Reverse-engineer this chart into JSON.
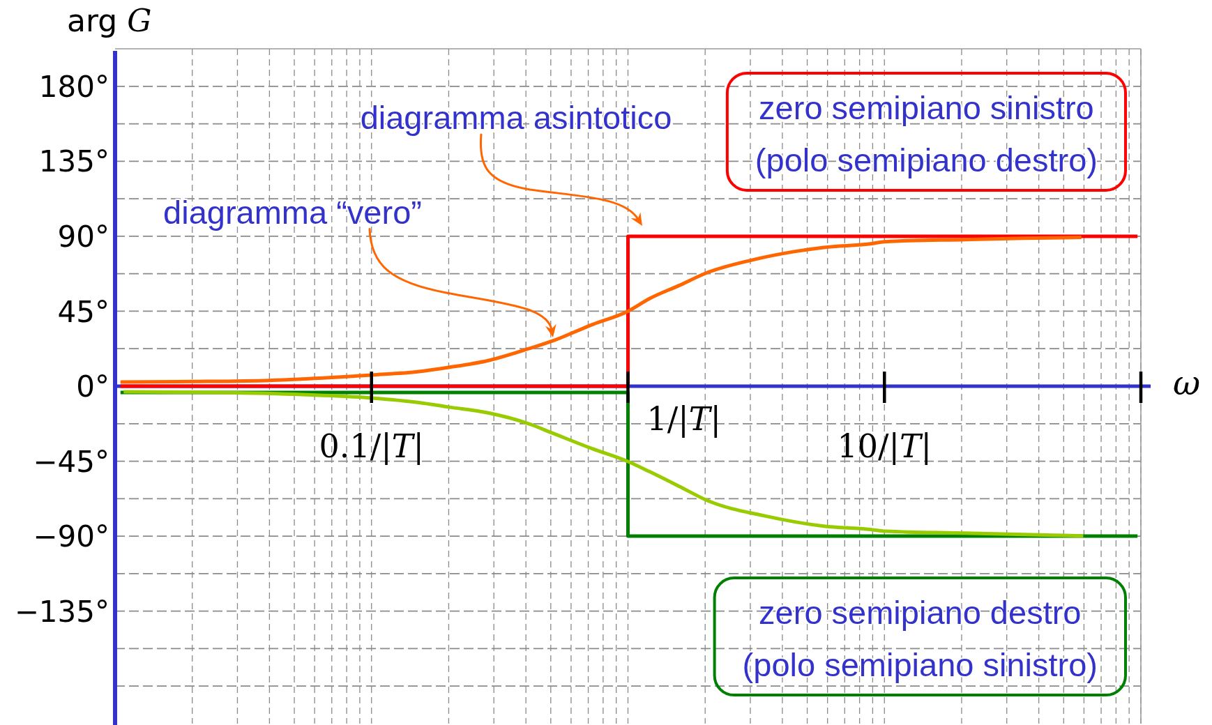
{
  "chart_data": {
    "type": "line",
    "xlabel": "ω",
    "ylabel": "arg G",
    "log": "x",
    "grid": true,
    "xlim": [
      0.01,
      100
    ],
    "ylim": [
      -202.5,
      202.5
    ],
    "xticks": [
      {
        "value": 0.02,
        "label": null
      },
      {
        "value": 0.03,
        "label": null
      },
      {
        "value": 0.04,
        "label": null
      },
      {
        "value": 0.05,
        "label": null
      },
      {
        "value": 0.06,
        "label": null
      },
      {
        "value": 0.07,
        "label": null
      },
      {
        "value": 0.08,
        "label": null
      },
      {
        "value": 0.09,
        "label": null
      },
      {
        "value": 0.1,
        "label": "0.1/|T|"
      },
      {
        "value": 0.2,
        "label": null
      },
      {
        "value": 0.3,
        "label": null
      },
      {
        "value": 0.4,
        "label": null
      },
      {
        "value": 0.5,
        "label": null
      },
      {
        "value": 0.6,
        "label": null
      },
      {
        "value": 0.7,
        "label": null
      },
      {
        "value": 0.8,
        "label": null
      },
      {
        "value": 0.9,
        "label": null
      },
      {
        "value": 1,
        "label": null
      },
      {
        "value": 2,
        "label": null
      },
      {
        "value": 3,
        "label": null
      },
      {
        "value": 4,
        "label": null
      },
      {
        "value": 5,
        "label": null
      },
      {
        "value": 6,
        "label": null
      },
      {
        "value": 7,
        "label": null
      },
      {
        "value": 8,
        "label": null
      },
      {
        "value": 9,
        "label": null
      },
      {
        "value": 10,
        "label": "10/|T|"
      },
      {
        "value": 20,
        "label": null
      },
      {
        "value": 30,
        "label": null
      },
      {
        "value": 40,
        "label": null
      },
      {
        "value": 50,
        "label": null
      },
      {
        "value": 60,
        "label": null
      },
      {
        "value": 70,
        "label": null
      },
      {
        "value": 80,
        "label": null
      },
      {
        "value": 90,
        "label": null
      },
      {
        "value": 100,
        "label": null
      }
    ],
    "yticks": [
      {
        "value": 180,
        "label": "180°"
      },
      {
        "value": 157.5,
        "label": null
      },
      {
        "value": 135,
        "label": "135°"
      },
      {
        "value": 112.5,
        "label": null
      },
      {
        "value": 90,
        "label": "90°"
      },
      {
        "value": 67.5,
        "label": null
      },
      {
        "value": 45,
        "label": "45°"
      },
      {
        "value": 22.5,
        "label": null
      },
      {
        "value": 0,
        "label": "0°"
      },
      {
        "value": -22.5,
        "label": null
      },
      {
        "value": -45,
        "label": "−45°"
      },
      {
        "value": -67.5,
        "label": null
      },
      {
        "value": -90,
        "label": "−90°"
      },
      {
        "value": -112.5,
        "label": null
      },
      {
        "value": -135,
        "label": "−135°"
      },
      {
        "value": -157.5,
        "label": null
      },
      {
        "value": -180,
        "label": null
      }
    ],
    "series": [
      {
        "name": "zero semipiano sinistro (polo semipiano destro)",
        "color": "#ff0000",
        "x": [
          0.0105,
          1,
          1,
          97
        ],
        "values": [
          0,
          0,
          90,
          90
        ]
      },
      {
        "name": "zero semipiano destro (polo semipiano sinistro)",
        "color": "#008000",
        "x": [
          0.0105,
          1,
          1,
          97
        ],
        "values": [
          -3.8,
          -3.8,
          -90,
          -90
        ]
      },
      {
        "color": "#ff6600",
        "x": [
          0.0105,
          0.02,
          0.04,
          0.07,
          0.1,
          0.153,
          0.2,
          0.285,
          0.41,
          0.505,
          0.726,
          1,
          1.218,
          1.58,
          2.04,
          3.02,
          4.45,
          5.8,
          8.94,
          10,
          20.7,
          35,
          58.6
        ],
        "values": [
          2.5,
          2.8,
          3.5,
          5.2,
          6.7,
          8.8,
          11.3,
          15.4,
          22.5,
          27,
          37,
          45,
          52.7,
          60.4,
          68.2,
          75.6,
          80.8,
          83.3,
          85.6,
          86.7,
          88,
          88.8,
          89.3
        ]
      },
      {
        "color": "#99cc00",
        "x": [
          0.0108,
          0.0206,
          0.05,
          0.1,
          0.153,
          0.2,
          0.285,
          0.41,
          0.505,
          0.726,
          1,
          1.218,
          1.58,
          2.04,
          3.45,
          5.8,
          8.8,
          10,
          20.7,
          59.6
        ],
        "values": [
          -3.3,
          -3.6,
          -4.8,
          -7.1,
          -9.8,
          -12.5,
          -16,
          -22.5,
          -28,
          -37.5,
          -45.2,
          -51.4,
          -60,
          -68.6,
          -78,
          -84,
          -86,
          -87,
          -88.2,
          -89.8
        ]
      }
    ],
    "annotations": [
      "diagramma asintotico",
      "diagramma “vero”",
      {
        "text": "1/|T|",
        "x": 1,
        "y": 0
      }
    ]
  }
}
